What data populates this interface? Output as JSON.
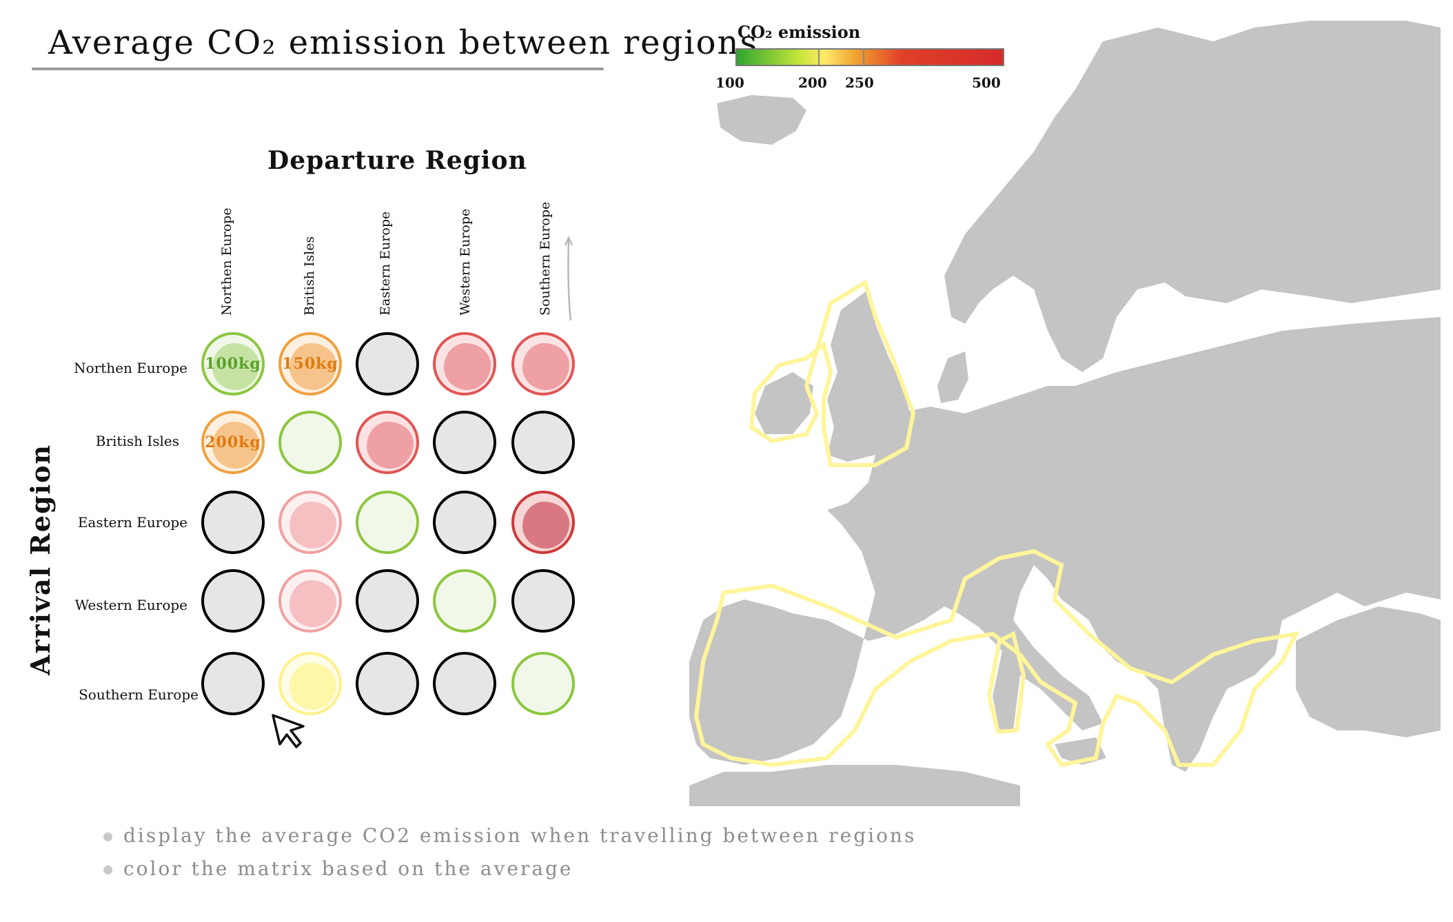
{
  "title": "Average CO₂ emission between regions",
  "departure_label": "Departure Region",
  "arrival_label": "Arrival Region",
  "columns": [
    "Northen Europe",
    "British Isles",
    "Eastern Europe",
    "Western Europe",
    "Southern Europe"
  ],
  "rows": [
    "Northen Europe",
    "British Isles",
    "Eastern Europe",
    "Western Europe",
    "Southern Europe"
  ],
  "cells": [
    [
      {
        "value": "100kg",
        "level": "green"
      },
      {
        "value": "150kg",
        "level": "orange"
      },
      {
        "value": "",
        "level": "empty"
      },
      {
        "value": "",
        "level": "red"
      },
      {
        "value": "",
        "level": "red"
      }
    ],
    [
      {
        "value": "200kg",
        "level": "orange"
      },
      {
        "value": "",
        "level": "light-green"
      },
      {
        "value": "",
        "level": "red"
      },
      {
        "value": "",
        "level": "empty"
      },
      {
        "value": "",
        "level": "empty"
      }
    ],
    [
      {
        "value": "",
        "level": "empty"
      },
      {
        "value": "",
        "level": "light-red"
      },
      {
        "value": "",
        "level": "light-green"
      },
      {
        "value": "",
        "level": "empty"
      },
      {
        "value": "",
        "level": "dark-red"
      }
    ],
    [
      {
        "value": "",
        "level": "empty"
      },
      {
        "value": "",
        "level": "light-red"
      },
      {
        "value": "",
        "level": "empty"
      },
      {
        "value": "",
        "level": "light-green"
      },
      {
        "value": "",
        "level": "empty"
      }
    ],
    [
      {
        "value": "",
        "level": "empty"
      },
      {
        "value": "",
        "level": "yellow"
      },
      {
        "value": "",
        "level": "empty"
      },
      {
        "value": "",
        "level": "empty"
      },
      {
        "value": "",
        "level": "light-green"
      }
    ]
  ],
  "legend": {
    "title": "CO₂ emission",
    "ticks": [
      "100",
      "200",
      "250",
      "500"
    ]
  },
  "notes": [
    "display the average CO2 emission when travelling between regions",
    "color the matrix based on the average"
  ],
  "colors": {
    "green": "#8cc63f",
    "orange": "#f0a040",
    "red": "#e05555",
    "light-red": "#f2a5a5",
    "dark-red": "#cc3a3a",
    "yellow": "#fff59a",
    "map": "#c4c4c4",
    "highlight": "#fff59a"
  },
  "icons": [
    "cursor-arrow-icon"
  ]
}
